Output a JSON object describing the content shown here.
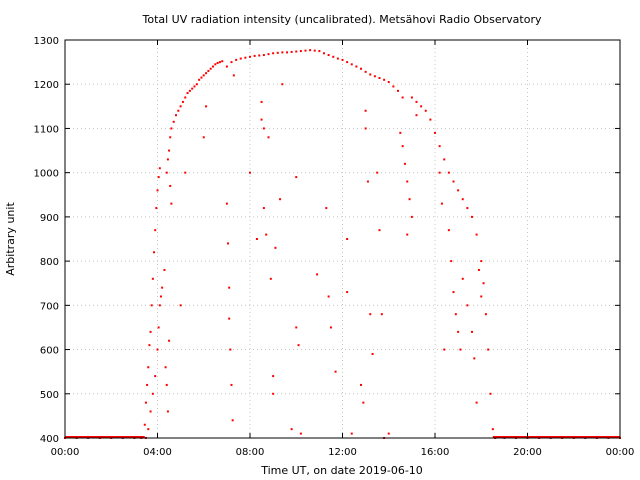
{
  "chart_data": {
    "type": "scatter",
    "title": "Total UV radiation intensity (uncalibrated). Metsähovi Radio Observatory",
    "xlabel": "Time UT, on date 2019-06-10",
    "ylabel": "Arbitrary unit",
    "xlim": [
      0,
      24
    ],
    "ylim": [
      400,
      1300
    ],
    "x_ticks": [
      {
        "value": 0,
        "label": "00:00"
      },
      {
        "value": 4,
        "label": "04:00"
      },
      {
        "value": 8,
        "label": "08:00"
      },
      {
        "value": 12,
        "label": "12:00"
      },
      {
        "value": 16,
        "label": "16:00"
      },
      {
        "value": 20,
        "label": "20:00"
      },
      {
        "value": 24,
        "label": "00:00"
      }
    ],
    "y_ticks": [
      400,
      500,
      600,
      700,
      800,
      900,
      1000,
      1100,
      1200,
      1300
    ],
    "grid": true,
    "colors": {
      "series": "#ff0000",
      "grid": "#c8c8c8",
      "axis": "#000000"
    },
    "series": [
      {
        "points": [
          [
            0.0,
            400
          ],
          [
            0.5,
            400
          ],
          [
            1.0,
            400
          ],
          [
            1.5,
            400
          ],
          [
            2.0,
            400
          ],
          [
            2.5,
            400
          ],
          [
            3.0,
            400
          ],
          [
            3.3,
            400
          ],
          [
            3.5,
            400
          ],
          [
            3.45,
            430
          ],
          [
            3.5,
            480
          ],
          [
            3.55,
            520
          ],
          [
            3.6,
            560
          ],
          [
            3.65,
            610
          ],
          [
            3.7,
            640
          ],
          [
            3.75,
            700
          ],
          [
            3.8,
            760
          ],
          [
            3.85,
            820
          ],
          [
            3.9,
            870
          ],
          [
            3.95,
            920
          ],
          [
            4.0,
            960
          ],
          [
            4.05,
            990
          ],
          [
            4.1,
            1010
          ],
          [
            3.6,
            420
          ],
          [
            3.7,
            460
          ],
          [
            3.8,
            500
          ],
          [
            3.9,
            540
          ],
          [
            4.0,
            600
          ],
          [
            4.05,
            650
          ],
          [
            4.1,
            700
          ],
          [
            4.15,
            720
          ],
          [
            4.2,
            740
          ],
          [
            4.3,
            780
          ],
          [
            4.35,
            560
          ],
          [
            4.4,
            520
          ],
          [
            4.45,
            460
          ],
          [
            4.5,
            620
          ],
          [
            4.4,
            1000
          ],
          [
            4.45,
            1030
          ],
          [
            4.5,
            1050
          ],
          [
            4.55,
            1080
          ],
          [
            4.6,
            1100
          ],
          [
            4.7,
            1115
          ],
          [
            4.8,
            1130
          ],
          [
            4.9,
            1140
          ],
          [
            5.0,
            1150
          ],
          [
            5.1,
            1160
          ],
          [
            5.2,
            1170
          ],
          [
            5.3,
            1180
          ],
          [
            5.4,
            1185
          ],
          [
            5.5,
            1190
          ],
          [
            5.6,
            1195
          ],
          [
            5.7,
            1200
          ],
          [
            5.8,
            1210
          ],
          [
            5.9,
            1215
          ],
          [
            6.0,
            1220
          ],
          [
            6.1,
            1225
          ],
          [
            6.2,
            1230
          ],
          [
            6.3,
            1235
          ],
          [
            6.4,
            1240
          ],
          [
            6.5,
            1245
          ],
          [
            6.6,
            1248
          ],
          [
            6.7,
            1250
          ],
          [
            6.8,
            1252
          ],
          [
            4.6,
            930
          ],
          [
            4.55,
            970
          ],
          [
            5.2,
            1000
          ],
          [
            6.0,
            1080
          ],
          [
            6.1,
            1150
          ],
          [
            5.0,
            700
          ],
          [
            7.0,
            1240
          ],
          [
            7.2,
            1250
          ],
          [
            7.4,
            1255
          ],
          [
            7.6,
            1258
          ],
          [
            7.8,
            1260
          ],
          [
            8.0,
            1262
          ],
          [
            8.2,
            1264
          ],
          [
            8.4,
            1265
          ],
          [
            8.6,
            1266
          ],
          [
            8.8,
            1268
          ],
          [
            9.0,
            1270
          ],
          [
            9.2,
            1271
          ],
          [
            9.4,
            1272
          ],
          [
            9.6,
            1272
          ],
          [
            9.8,
            1273
          ],
          [
            10.0,
            1274
          ],
          [
            10.2,
            1275
          ],
          [
            10.4,
            1276
          ],
          [
            10.6,
            1277
          ],
          [
            10.8,
            1276
          ],
          [
            11.0,
            1275
          ],
          [
            11.2,
            1270
          ],
          [
            11.4,
            1266
          ],
          [
            11.6,
            1262
          ],
          [
            11.8,
            1258
          ],
          [
            12.0,
            1255
          ],
          [
            12.2,
            1250
          ],
          [
            12.4,
            1245
          ],
          [
            12.6,
            1240
          ],
          [
            12.8,
            1235
          ],
          [
            13.0,
            1228
          ],
          [
            13.2,
            1222
          ],
          [
            13.4,
            1218
          ],
          [
            13.6,
            1214
          ],
          [
            13.8,
            1210
          ],
          [
            14.0,
            1205
          ],
          [
            14.2,
            1195
          ],
          [
            14.4,
            1185
          ],
          [
            14.6,
            1170
          ],
          [
            7.0,
            930
          ],
          [
            7.05,
            840
          ],
          [
            7.1,
            740
          ],
          [
            7.1,
            670
          ],
          [
            7.15,
            600
          ],
          [
            7.2,
            520
          ],
          [
            7.25,
            440
          ],
          [
            7.3,
            1220
          ],
          [
            8.0,
            1000
          ],
          [
            8.3,
            850
          ],
          [
            8.5,
            1160
          ],
          [
            8.5,
            1120
          ],
          [
            8.6,
            1100
          ],
          [
            8.6,
            920
          ],
          [
            8.7,
            860
          ],
          [
            8.8,
            1080
          ],
          [
            8.9,
            760
          ],
          [
            9.0,
            540
          ],
          [
            9.0,
            500
          ],
          [
            9.1,
            830
          ],
          [
            9.3,
            940
          ],
          [
            9.4,
            1200
          ],
          [
            9.8,
            420
          ],
          [
            10.0,
            990
          ],
          [
            10.0,
            650
          ],
          [
            10.1,
            610
          ],
          [
            10.2,
            410
          ],
          [
            10.9,
            770
          ],
          [
            11.3,
            920
          ],
          [
            11.4,
            720
          ],
          [
            11.5,
            650
          ],
          [
            11.7,
            550
          ],
          [
            12.2,
            730
          ],
          [
            12.2,
            850
          ],
          [
            12.4,
            410
          ],
          [
            12.8,
            520
          ],
          [
            12.9,
            480
          ],
          [
            13.0,
            1100
          ],
          [
            13.0,
            1140
          ],
          [
            13.1,
            980
          ],
          [
            13.2,
            680
          ],
          [
            13.3,
            590
          ],
          [
            13.5,
            1000
          ],
          [
            13.6,
            870
          ],
          [
            13.7,
            680
          ],
          [
            13.8,
            400
          ],
          [
            14.0,
            410
          ],
          [
            14.5,
            1090
          ],
          [
            14.6,
            1060
          ],
          [
            14.7,
            1020
          ],
          [
            14.8,
            980
          ],
          [
            14.9,
            940
          ],
          [
            15.0,
            900
          ],
          [
            14.8,
            860
          ],
          [
            15.2,
            1130
          ],
          [
            15.0,
            1170
          ],
          [
            15.2,
            1160
          ],
          [
            15.4,
            1150
          ],
          [
            15.6,
            1140
          ],
          [
            15.8,
            1120
          ],
          [
            16.0,
            1090
          ],
          [
            16.2,
            1060
          ],
          [
            16.4,
            1030
          ],
          [
            16.6,
            1000
          ],
          [
            16.8,
            980
          ],
          [
            17.0,
            960
          ],
          [
            17.2,
            940
          ],
          [
            17.4,
            920
          ],
          [
            17.6,
            900
          ],
          [
            17.8,
            860
          ],
          [
            18.0,
            800
          ],
          [
            18.1,
            750
          ],
          [
            18.2,
            680
          ],
          [
            18.3,
            600
          ],
          [
            18.4,
            500
          ],
          [
            18.5,
            420
          ],
          [
            16.2,
            1000
          ],
          [
            16.3,
            930
          ],
          [
            16.4,
            600
          ],
          [
            16.6,
            870
          ],
          [
            16.7,
            800
          ],
          [
            16.8,
            730
          ],
          [
            16.9,
            680
          ],
          [
            17.0,
            640
          ],
          [
            17.1,
            600
          ],
          [
            17.2,
            760
          ],
          [
            17.4,
            700
          ],
          [
            17.6,
            640
          ],
          [
            17.7,
            580
          ],
          [
            17.8,
            480
          ],
          [
            17.9,
            780
          ],
          [
            18.0,
            720
          ],
          [
            18.6,
            400
          ],
          [
            19.0,
            400
          ],
          [
            19.5,
            400
          ],
          [
            20.0,
            400
          ],
          [
            20.5,
            400
          ],
          [
            21.0,
            400
          ],
          [
            21.5,
            400
          ],
          [
            22.0,
            400
          ],
          [
            22.5,
            400
          ],
          [
            23.0,
            400
          ],
          [
            23.5,
            400
          ],
          [
            24.0,
            400
          ]
        ]
      }
    ]
  }
}
